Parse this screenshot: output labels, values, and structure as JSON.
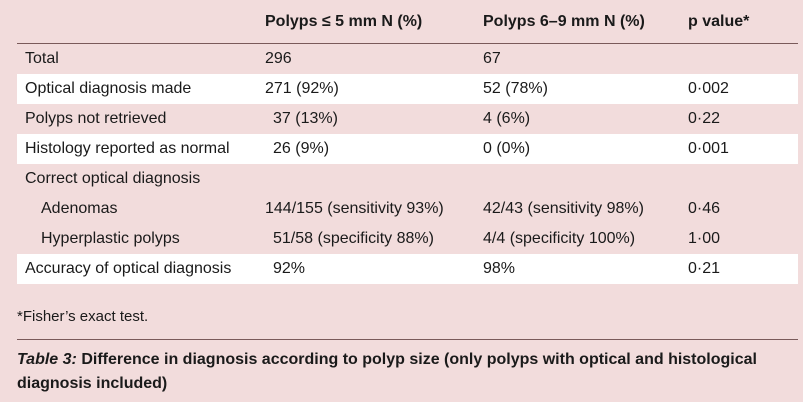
{
  "table": {
    "headers": [
      "",
      "Polyps ≤ 5 mm N (%)",
      "Polyps 6–9 mm N (%)",
      "p value*"
    ],
    "rows": [
      {
        "label": "Total",
        "col1": "296",
        "col2": "67",
        "col3": ""
      },
      {
        "label": "Optical diagnosis made",
        "col1": "271 (92%)",
        "col2": "52 (78%)",
        "col3": "0·002"
      },
      {
        "label": "Polyps not retrieved",
        "col1": "37 (13%)",
        "col2": "4 (6%)",
        "col3": "0·22"
      },
      {
        "label": "Histology reported as normal",
        "col1": "26 (9%)",
        "col2": "0 (0%)",
        "col3": "0·001"
      },
      {
        "label": "Correct optical diagnosis",
        "col1": "",
        "col2": "",
        "col3": ""
      },
      {
        "label": "Adenomas",
        "col1": "144/155 (sensitivity 93%)",
        "col2": "42/43 (sensitivity 98%)",
        "col3": "0·46"
      },
      {
        "label": "Hyperplastic polyps",
        "col1": "51/58 (specificity 88%)",
        "col2": "4/4 (specificity 100%)",
        "col3": "1·00"
      },
      {
        "label": "Accuracy of optical diagnosis",
        "col1": "92%",
        "col2": "98%",
        "col3": "0·21"
      }
    ]
  },
  "footnote": "*Fisher’s exact test.",
  "caption": {
    "label": "Table 3:",
    "text": " Difference in diagnosis according to polyp size (only polyps with optical and histological diagnosis included)"
  }
}
